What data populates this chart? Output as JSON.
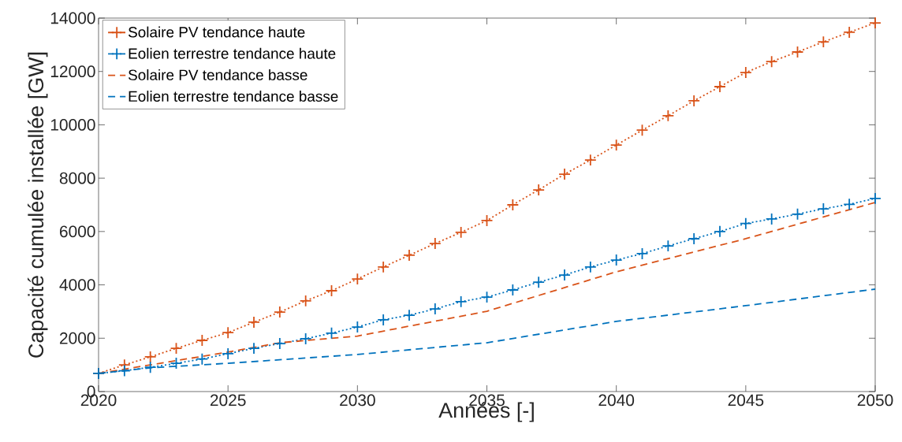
{
  "chart_data": {
    "type": "line",
    "xlabel": "Années [-]",
    "ylabel": "Capacité cumulée installée [GW]",
    "xlim": [
      2020,
      2050
    ],
    "ylim": [
      0,
      14000
    ],
    "xticks": [
      2020,
      2025,
      2030,
      2035,
      2040,
      2045,
      2050
    ],
    "yticks": [
      0,
      2000,
      4000,
      6000,
      8000,
      10000,
      12000,
      14000
    ],
    "legend": "top left",
    "grid": false,
    "series": [
      {
        "name": "Solaire PV tendance haute",
        "color": "#d95319",
        "marker": "cross",
        "line_style": "dotted",
        "x": [
          2020,
          2021,
          2022,
          2023,
          2024,
          2025,
          2026,
          2027,
          2028,
          2029,
          2030,
          2031,
          2032,
          2033,
          2034,
          2035,
          2036,
          2037,
          2038,
          2039,
          2040,
          2041,
          2042,
          2043,
          2044,
          2045,
          2046,
          2047,
          2048,
          2049,
          2050
        ],
        "values": [
          680,
          1000,
          1300,
          1620,
          1920,
          2210,
          2600,
          2980,
          3400,
          3780,
          4220,
          4670,
          5110,
          5550,
          5970,
          6410,
          7000,
          7560,
          8150,
          8680,
          9240,
          9800,
          10340,
          10900,
          11430,
          11960,
          12370,
          12730,
          13110,
          13470,
          13820
        ]
      },
      {
        "name": "Eolien terrestre tendance haute",
        "color": "#0072bd",
        "marker": "cross",
        "line_style": "dotted",
        "x": [
          2020,
          2021,
          2022,
          2023,
          2024,
          2025,
          2026,
          2027,
          2028,
          2029,
          2030,
          2031,
          2032,
          2033,
          2034,
          2035,
          2036,
          2037,
          2038,
          2039,
          2040,
          2041,
          2042,
          2043,
          2044,
          2045,
          2046,
          2047,
          2048,
          2049,
          2050
        ],
        "values": [
          680,
          780,
          910,
          1060,
          1220,
          1420,
          1620,
          1800,
          1980,
          2190,
          2420,
          2690,
          2860,
          3100,
          3370,
          3540,
          3810,
          4100,
          4370,
          4670,
          4930,
          5170,
          5460,
          5730,
          6000,
          6300,
          6470,
          6650,
          6850,
          7020,
          7240
        ]
      },
      {
        "name": "Solaire PV tendance basse",
        "color": "#d95319",
        "marker": "none",
        "line_style": "dashed",
        "x": [
          2020,
          2022,
          2025,
          2027,
          2030,
          2035,
          2040,
          2045,
          2050
        ],
        "values": [
          680,
          1000,
          1480,
          1830,
          2080,
          3010,
          4490,
          5730,
          7090
        ]
      },
      {
        "name": "Eolien terrestre tendance basse",
        "color": "#0072bd",
        "marker": "none",
        "line_style": "dashed",
        "x": [
          2020,
          2022,
          2025,
          2030,
          2035,
          2040,
          2045,
          2050
        ],
        "values": [
          680,
          890,
          1060,
          1390,
          1830,
          2630,
          3220,
          3840
        ]
      }
    ]
  }
}
